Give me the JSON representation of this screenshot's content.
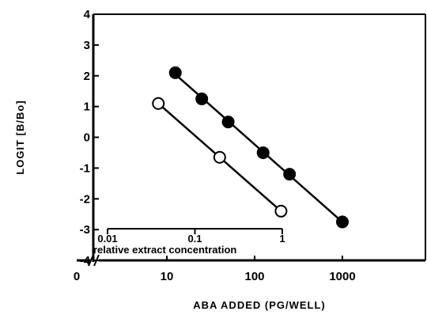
{
  "chart_data": {
    "type": "scatter",
    "title": "",
    "xlabel": "ABA ADDED (PG/WELL)",
    "ylabel": "LOGIT [B/Bo]",
    "x_scale": "log",
    "xlim": [
      1,
      10000
    ],
    "ylim": [
      -4,
      4
    ],
    "x_ticks": [
      {
        "value": 10,
        "label": "10"
      },
      {
        "value": 100,
        "label": "100"
      },
      {
        "value": 1000,
        "label": "1000"
      }
    ],
    "x_origin_label": "0",
    "y_ticks": [
      {
        "value": 4,
        "label": "4"
      },
      {
        "value": 3,
        "label": "3"
      },
      {
        "value": 2,
        "label": "2"
      },
      {
        "value": 1,
        "label": "1"
      },
      {
        "value": 0,
        "label": "0"
      },
      {
        "value": -1,
        "label": "-1"
      },
      {
        "value": -2,
        "label": "-2"
      },
      {
        "value": -3,
        "label": "-3"
      },
      {
        "value": -4,
        "label": "-4"
      }
    ],
    "grid": false,
    "series": [
      {
        "marker": "filled-circle",
        "color": "#000000",
        "x": [
          12.5,
          25,
          50,
          125,
          250,
          1000
        ],
        "y": [
          2.1,
          1.25,
          0.5,
          -0.5,
          -1.2,
          -2.75
        ]
      },
      {
        "marker": "open-circle",
        "color": "#000000",
        "x": [
          8,
          40,
          200
        ],
        "y": [
          1.1,
          -0.65,
          -2.4
        ]
      }
    ],
    "inset_axis": {
      "label": "relative extract concentration",
      "scale": "log",
      "ticks": [
        {
          "value": 0.01,
          "label": "0.01"
        },
        {
          "value": 0.1,
          "label": "0.1"
        },
        {
          "value": 1,
          "label": "1"
        }
      ]
    }
  }
}
